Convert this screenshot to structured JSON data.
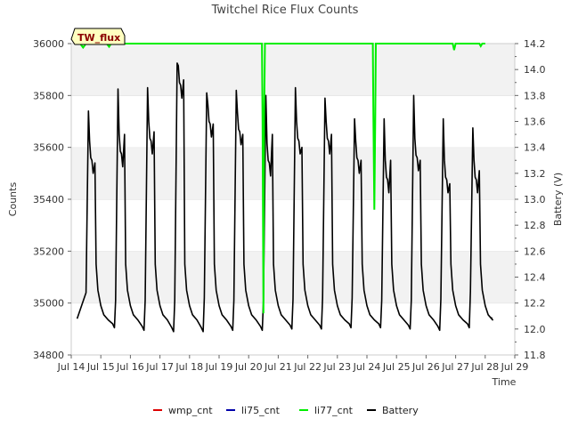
{
  "chart_data": {
    "type": "line",
    "title": "Twitchel Rice Flux Counts",
    "site_label": "TW_flux",
    "xlabel": "Time",
    "ylabel": "Counts",
    "y2label": "Battery (V)",
    "xlim": [
      14,
      29
    ],
    "ylim": [
      34800,
      36000
    ],
    "y2lim": [
      11.8,
      14.2
    ],
    "x_ticks": [
      {
        "value": 14,
        "label": "Jul 14"
      },
      {
        "value": 15,
        "label": "Jul 15"
      },
      {
        "value": 16,
        "label": "Jul 16"
      },
      {
        "value": 17,
        "label": "Jul 17"
      },
      {
        "value": 18,
        "label": "Jul 18"
      },
      {
        "value": 19,
        "label": "Jul 19"
      },
      {
        "value": 20,
        "label": "Jul 20"
      },
      {
        "value": 21,
        "label": "Jul 21"
      },
      {
        "value": 22,
        "label": "Jul 22"
      },
      {
        "value": 23,
        "label": "Jul 23"
      },
      {
        "value": 24,
        "label": "Jul 24"
      },
      {
        "value": 25,
        "label": "Jul 25"
      },
      {
        "value": 26,
        "label": "Jul 26"
      },
      {
        "value": 27,
        "label": "Jul 27"
      },
      {
        "value": 28,
        "label": "Jul 28"
      },
      {
        "value": 29,
        "label": "Jul 29"
      }
    ],
    "y_ticks": [
      34800,
      35000,
      35200,
      35400,
      35600,
      35800,
      36000
    ],
    "y2_ticks": [
      11.8,
      12.0,
      12.2,
      12.4,
      12.6,
      12.8,
      13.0,
      13.2,
      13.4,
      13.6,
      13.8,
      14.0,
      14.2
    ],
    "series": [
      {
        "name": "wmp_cnt",
        "color": "#dd0000",
        "axis": "left",
        "points": []
      },
      {
        "name": "li75_cnt",
        "color": "#0000aa",
        "axis": "left",
        "points": []
      },
      {
        "name": "li77_cnt",
        "color": "#00ee00",
        "axis": "left",
        "points": [
          [
            14.3,
            36000
          ],
          [
            14.4,
            35985
          ],
          [
            14.5,
            36000
          ],
          [
            15.2,
            36000
          ],
          [
            15.28,
            35988
          ],
          [
            15.35,
            36000
          ],
          [
            20.45,
            36000
          ],
          [
            20.47,
            35700
          ],
          [
            20.5,
            34960
          ],
          [
            20.52,
            35700
          ],
          [
            20.55,
            36000
          ],
          [
            24.2,
            36000
          ],
          [
            24.22,
            35700
          ],
          [
            24.25,
            35360
          ],
          [
            24.28,
            35700
          ],
          [
            24.3,
            36000
          ],
          [
            26.9,
            36000
          ],
          [
            26.95,
            35975
          ],
          [
            27.0,
            36000
          ],
          [
            27.8,
            36000
          ],
          [
            27.85,
            35990
          ],
          [
            27.9,
            36000
          ],
          [
            28.0,
            36000
          ]
        ]
      },
      {
        "name": "Battery",
        "color": "#000000",
        "axis": "right",
        "days": [
          {
            "day": 14,
            "peak": 13.68,
            "mid": 13.2,
            "second": 13.28,
            "low": 12.01,
            "evening_start": 12.08
          },
          {
            "day": 15,
            "peak": 13.85,
            "mid": 13.25,
            "second": 13.5,
            "low": 11.99,
            "evening_start": 12.02
          },
          {
            "day": 16,
            "peak": 13.86,
            "mid": 13.35,
            "second": 13.52,
            "low": 11.98,
            "evening_start": 12.02
          },
          {
            "day": 17,
            "peak": 14.05,
            "mid": 13.78,
            "second": 13.92,
            "low": 11.98,
            "evening_start": 12.02
          },
          {
            "day": 18,
            "peak": 13.82,
            "mid": 13.48,
            "second": 13.58,
            "low": 11.99,
            "evening_start": 12.04
          },
          {
            "day": 19,
            "peak": 13.84,
            "mid": 13.42,
            "second": 13.5,
            "low": 11.99,
            "evening_start": 12.02
          },
          {
            "day": 20,
            "peak": 13.8,
            "mid": 13.18,
            "second": 13.5,
            "low": 12.0,
            "evening_start": 12.02
          },
          {
            "day": 21,
            "peak": 13.86,
            "mid": 13.35,
            "second": 13.4,
            "low": 12.0,
            "evening_start": 12.03
          },
          {
            "day": 22,
            "peak": 13.78,
            "mid": 13.35,
            "second": 13.5,
            "low": 12.01,
            "evening_start": 12.04
          },
          {
            "day": 23,
            "peak": 13.62,
            "mid": 13.2,
            "second": 13.3,
            "low": 12.01,
            "evening_start": 12.04
          },
          {
            "day": 24,
            "peak": 13.62,
            "mid": 13.05,
            "second": 13.3,
            "low": 12.0,
            "evening_start": 12.02
          },
          {
            "day": 25,
            "peak": 13.8,
            "mid": 13.22,
            "second": 13.3,
            "low": 11.99,
            "evening_start": 12.02
          },
          {
            "day": 26,
            "peak": 13.62,
            "mid": 13.05,
            "second": 13.12,
            "low": 12.01,
            "evening_start": 12.03
          },
          {
            "day": 27,
            "peak": 13.55,
            "mid": 13.05,
            "second": 13.22,
            "low": null,
            "evening_start": 12.09
          }
        ],
        "start": [
          14.2,
          12.08
        ],
        "end": [
          28.2,
          12.09
        ]
      }
    ],
    "legend": [
      "wmp_cnt",
      "li75_cnt",
      "li77_cnt",
      "Battery"
    ],
    "legend_position": "bottom",
    "grid": true
  }
}
